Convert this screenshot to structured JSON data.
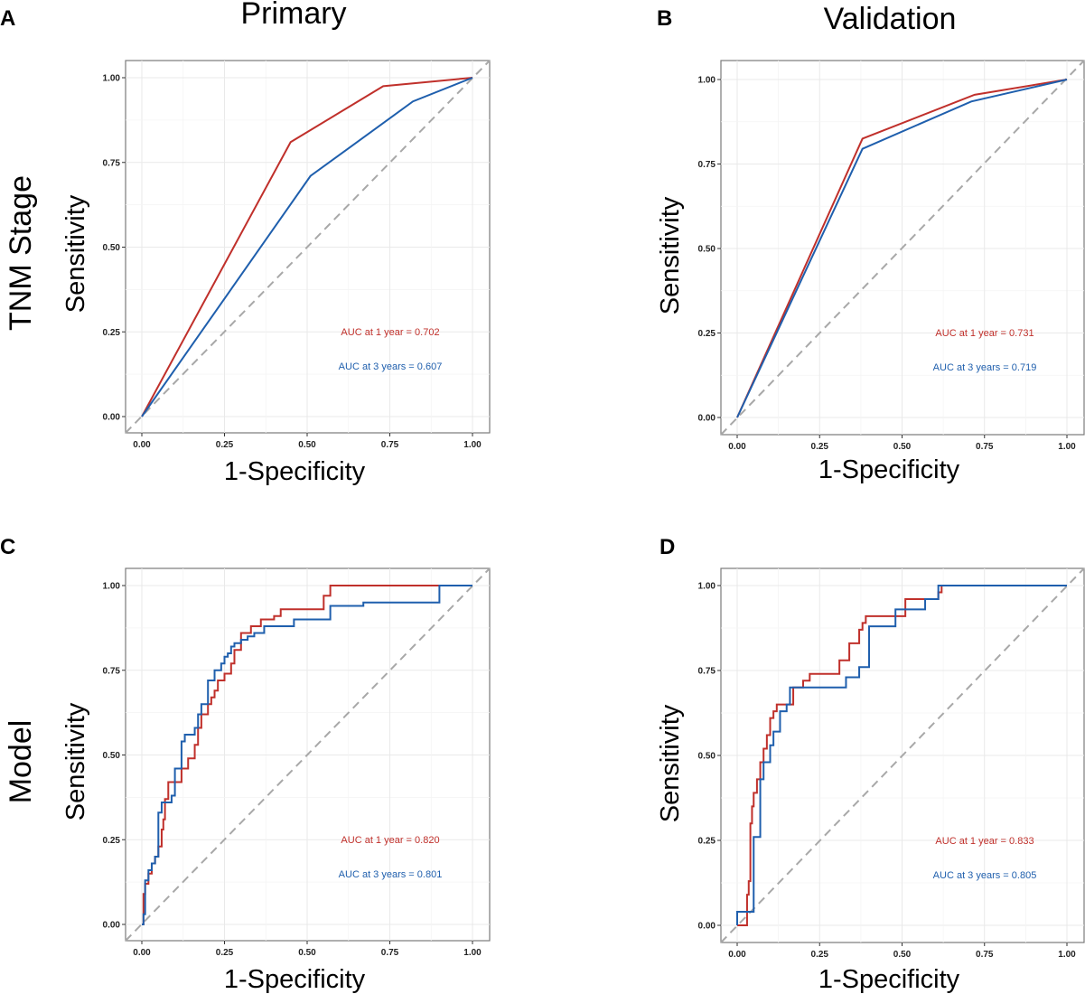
{
  "figure": {
    "column_titles": [
      "Primary",
      "Validation"
    ],
    "row_labels": [
      "TNM Stage",
      "Model"
    ],
    "colors": {
      "year1": "#c0302b",
      "year3": "#1f5fad",
      "diagonal": "#a8a8a8"
    }
  },
  "chart_data": [
    {
      "panel": "A",
      "type": "line",
      "row": 0,
      "col": 0,
      "xlabel": "1-Specificity",
      "ylabel": "Sensitivity",
      "xlim": [
        0,
        1
      ],
      "ylim": [
        0,
        1
      ],
      "ticks": [
        "0.00",
        "0.25",
        "0.50",
        "0.75",
        "1.00"
      ],
      "series": [
        {
          "name": "1 year",
          "color": "#c0302b",
          "label": "AUC at 1 year = 0.702",
          "x": [
            0,
            0.45,
            0.73,
            1.0
          ],
          "y": [
            0,
            0.81,
            0.975,
            1.0
          ]
        },
        {
          "name": "3 years",
          "color": "#1f5fad",
          "label": "AUC at 3 years = 0.607",
          "x": [
            0,
            0.51,
            0.82,
            1.0
          ],
          "y": [
            0,
            0.71,
            0.93,
            1.0
          ]
        }
      ]
    },
    {
      "panel": "B",
      "type": "line",
      "row": 0,
      "col": 1,
      "xlabel": "1-Specificity",
      "ylabel": "Sensitivity",
      "xlim": [
        0,
        1
      ],
      "ylim": [
        0,
        1
      ],
      "ticks": [
        "0.00",
        "0.25",
        "0.50",
        "0.75",
        "1.00"
      ],
      "series": [
        {
          "name": "1 year",
          "color": "#c0302b",
          "label": "AUC at 1 year = 0.731",
          "x": [
            0,
            0.38,
            0.72,
            1.0
          ],
          "y": [
            0,
            0.825,
            0.955,
            1.0
          ]
        },
        {
          "name": "3 years",
          "color": "#1f5fad",
          "label": "AUC at 3 years = 0.719",
          "x": [
            0,
            0.38,
            0.71,
            1.0
          ],
          "y": [
            0,
            0.795,
            0.935,
            1.0
          ]
        }
      ]
    },
    {
      "panel": "C",
      "type": "line",
      "row": 1,
      "col": 0,
      "xlabel": "1-Specificity",
      "ylabel": "Sensitivity",
      "xlim": [
        0,
        1
      ],
      "ylim": [
        0,
        1
      ],
      "ticks": [
        "0.00",
        "0.25",
        "0.50",
        "0.75",
        "1.00"
      ],
      "series": [
        {
          "name": "1 year",
          "color": "#c0302b",
          "label": "AUC at 1 year = 0.820",
          "x": [
            0,
            0.005,
            0.005,
            0.01,
            0.01,
            0.02,
            0.02,
            0.03,
            0.03,
            0.04,
            0.04,
            0.05,
            0.05,
            0.06,
            0.06,
            0.065,
            0.065,
            0.07,
            0.07,
            0.08,
            0.08,
            0.12,
            0.12,
            0.14,
            0.14,
            0.16,
            0.16,
            0.17,
            0.17,
            0.18,
            0.18,
            0.2,
            0.2,
            0.21,
            0.21,
            0.22,
            0.22,
            0.23,
            0.23,
            0.25,
            0.25,
            0.27,
            0.27,
            0.28,
            0.28,
            0.3,
            0.3,
            0.33,
            0.33,
            0.36,
            0.36,
            0.4,
            0.4,
            0.42,
            0.42,
            0.55,
            0.55,
            0.57,
            0.57,
            1.0
          ],
          "y": [
            0,
            0,
            0.09,
            0.09,
            0.12,
            0.12,
            0.15,
            0.15,
            0.18,
            0.18,
            0.2,
            0.2,
            0.23,
            0.23,
            0.28,
            0.28,
            0.31,
            0.31,
            0.37,
            0.37,
            0.42,
            0.42,
            0.46,
            0.46,
            0.49,
            0.49,
            0.53,
            0.53,
            0.58,
            0.58,
            0.62,
            0.62,
            0.65,
            0.65,
            0.67,
            0.67,
            0.69,
            0.69,
            0.72,
            0.72,
            0.74,
            0.74,
            0.77,
            0.77,
            0.81,
            0.81,
            0.86,
            0.86,
            0.88,
            0.88,
            0.9,
            0.9,
            0.91,
            0.91,
            0.93,
            0.93,
            0.97,
            0.97,
            1.0,
            1.0
          ]
        },
        {
          "name": "3 years",
          "color": "#1f5fad",
          "label": "AUC at 3 years = 0.801",
          "x": [
            0,
            0.005,
            0.005,
            0.01,
            0.01,
            0.02,
            0.02,
            0.03,
            0.03,
            0.04,
            0.04,
            0.05,
            0.05,
            0.06,
            0.06,
            0.09,
            0.09,
            0.1,
            0.1,
            0.12,
            0.12,
            0.13,
            0.13,
            0.16,
            0.16,
            0.17,
            0.17,
            0.18,
            0.18,
            0.2,
            0.2,
            0.22,
            0.22,
            0.24,
            0.24,
            0.25,
            0.25,
            0.26,
            0.26,
            0.27,
            0.27,
            0.28,
            0.28,
            0.3,
            0.3,
            0.32,
            0.32,
            0.34,
            0.34,
            0.37,
            0.37,
            0.46,
            0.46,
            0.57,
            0.57,
            0.67,
            0.67,
            0.9,
            0.9,
            1.0
          ],
          "y": [
            0,
            0,
            0.03,
            0.03,
            0.13,
            0.13,
            0.16,
            0.16,
            0.18,
            0.18,
            0.2,
            0.2,
            0.33,
            0.33,
            0.36,
            0.36,
            0.38,
            0.38,
            0.46,
            0.46,
            0.54,
            0.54,
            0.56,
            0.56,
            0.58,
            0.58,
            0.62,
            0.62,
            0.65,
            0.65,
            0.72,
            0.72,
            0.75,
            0.75,
            0.77,
            0.77,
            0.79,
            0.79,
            0.8,
            0.8,
            0.82,
            0.82,
            0.83,
            0.83,
            0.84,
            0.84,
            0.85,
            0.85,
            0.86,
            0.86,
            0.88,
            0.88,
            0.9,
            0.9,
            0.94,
            0.94,
            0.95,
            0.95,
            1.0,
            1.0
          ]
        }
      ]
    },
    {
      "panel": "D",
      "type": "line",
      "row": 1,
      "col": 1,
      "xlabel": "1-Specificity",
      "ylabel": "Sensitivity",
      "xlim": [
        0,
        1
      ],
      "ylim": [
        0,
        1
      ],
      "ticks": [
        "0.00",
        "0.25",
        "0.50",
        "0.75",
        "1.00"
      ],
      "series": [
        {
          "name": "1 year",
          "color": "#c0302b",
          "label": "AUC at 1 year = 0.833",
          "x": [
            0,
            0.03,
            0.03,
            0.035,
            0.035,
            0.04,
            0.04,
            0.045,
            0.045,
            0.05,
            0.05,
            0.06,
            0.06,
            0.07,
            0.07,
            0.08,
            0.08,
            0.09,
            0.09,
            0.1,
            0.1,
            0.11,
            0.11,
            0.12,
            0.12,
            0.13,
            0.13,
            0.17,
            0.17,
            0.2,
            0.2,
            0.22,
            0.22,
            0.31,
            0.31,
            0.34,
            0.34,
            0.37,
            0.37,
            0.38,
            0.38,
            0.39,
            0.39,
            0.51,
            0.51,
            0.61,
            0.61,
            0.62,
            0.62,
            1.0
          ],
          "y": [
            0,
            0,
            0.09,
            0.09,
            0.13,
            0.13,
            0.3,
            0.3,
            0.35,
            0.35,
            0.39,
            0.39,
            0.43,
            0.43,
            0.48,
            0.48,
            0.52,
            0.52,
            0.56,
            0.56,
            0.61,
            0.61,
            0.63,
            0.63,
            0.65,
            0.65,
            0.65,
            0.65,
            0.7,
            0.7,
            0.72,
            0.72,
            0.74,
            0.74,
            0.78,
            0.78,
            0.83,
            0.83,
            0.87,
            0.87,
            0.89,
            0.89,
            0.91,
            0.91,
            0.96,
            0.96,
            0.98,
            0.98,
            1.0,
            1.0
          ]
        },
        {
          "name": "3 years",
          "color": "#1f5fad",
          "label": "AUC at 3 years = 0.805",
          "x": [
            0,
            0.0,
            0.0,
            0.05,
            0.05,
            0.07,
            0.07,
            0.08,
            0.08,
            0.1,
            0.1,
            0.11,
            0.11,
            0.13,
            0.13,
            0.15,
            0.15,
            0.16,
            0.16,
            0.19,
            0.19,
            0.33,
            0.33,
            0.37,
            0.37,
            0.4,
            0.4,
            0.48,
            0.48,
            0.57,
            0.57,
            0.61,
            0.61,
            1.0
          ],
          "y": [
            0,
            0,
            0.04,
            0.04,
            0.26,
            0.26,
            0.43,
            0.43,
            0.48,
            0.48,
            0.53,
            0.53,
            0.57,
            0.57,
            0.63,
            0.63,
            0.65,
            0.65,
            0.7,
            0.7,
            0.7,
            0.7,
            0.73,
            0.73,
            0.76,
            0.76,
            0.88,
            0.88,
            0.93,
            0.93,
            0.96,
            0.96,
            1.0,
            1.0
          ]
        }
      ]
    }
  ]
}
